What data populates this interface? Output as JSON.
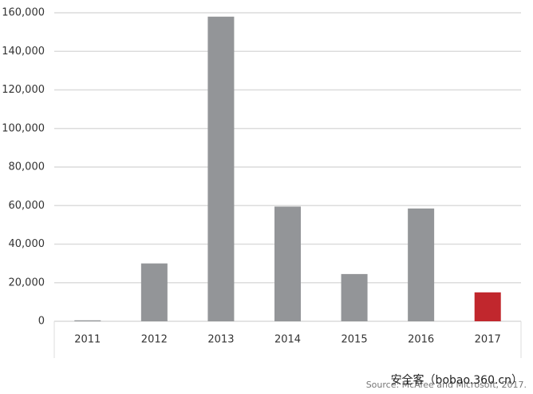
{
  "chart_data": {
    "type": "bar",
    "categories": [
      "2011",
      "2012",
      "2013",
      "2014",
      "2015",
      "2016",
      "2017"
    ],
    "values": [
      500,
      30000,
      158000,
      59500,
      24500,
      58500,
      15000
    ],
    "colors": [
      "#939598",
      "#939598",
      "#939598",
      "#939598",
      "#939598",
      "#939598",
      "#c1272d"
    ],
    "ylim": [
      0,
      160000
    ],
    "yticks": [
      0,
      {
        "value": 20000,
        "label": "20,000"
      },
      {
        "value": 40000,
        "label": "40,000"
      },
      {
        "value": 60000,
        "label": "60,000"
      },
      {
        "value": 80000,
        "label": "80,000"
      },
      {
        "value": 100000,
        "label": "100,000"
      },
      {
        "value": 120000,
        "label": "120,000"
      },
      {
        "value": 140000,
        "label": "140,000"
      },
      {
        "value": 160000,
        "label": "160,000"
      }
    ],
    "grid": true,
    "source": "Source: McAfee and Microsoft, 2017.",
    "watermark": "安全客（bobao.360.cn）"
  }
}
